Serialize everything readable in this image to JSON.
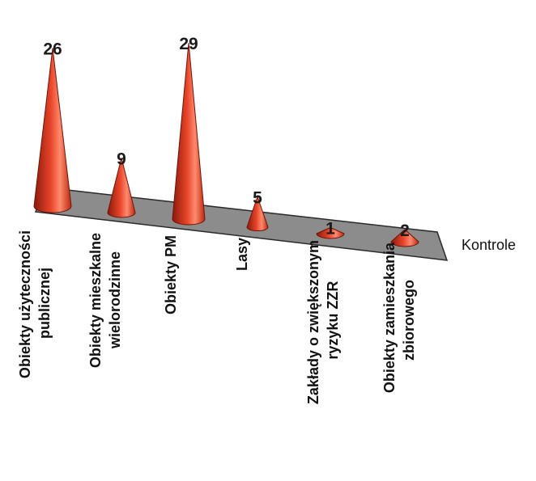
{
  "chart_data": {
    "type": "bar",
    "style": "3d-cone",
    "categories": [
      [
        "Obiekty użyteczności",
        "publicznej"
      ],
      [
        "Obiekty mieszkalne",
        "wielorodzinne"
      ],
      [
        "Obiekty PM"
      ],
      [
        "Lasy"
      ],
      [
        "Zakłady o zwiększonym",
        "ryzyku ZZR"
      ],
      [
        "Obiekty zamieszkania",
        "zbiorowego"
      ]
    ],
    "series": [
      {
        "name": "Kontrole",
        "values": [
          26,
          9,
          29,
          5,
          1,
          2
        ]
      }
    ],
    "data_labels": [
      "26",
      "9",
      "29",
      "5",
      "1",
      "2"
    ],
    "ylim": [
      0,
      29
    ],
    "grid": false,
    "colors": {
      "cone": "#e8452a",
      "cone_dark": "#8a1a0c",
      "cone_light": "#ff9a80",
      "floor": "#8c8c8c",
      "floor_edge": "#2a2a2a"
    }
  }
}
